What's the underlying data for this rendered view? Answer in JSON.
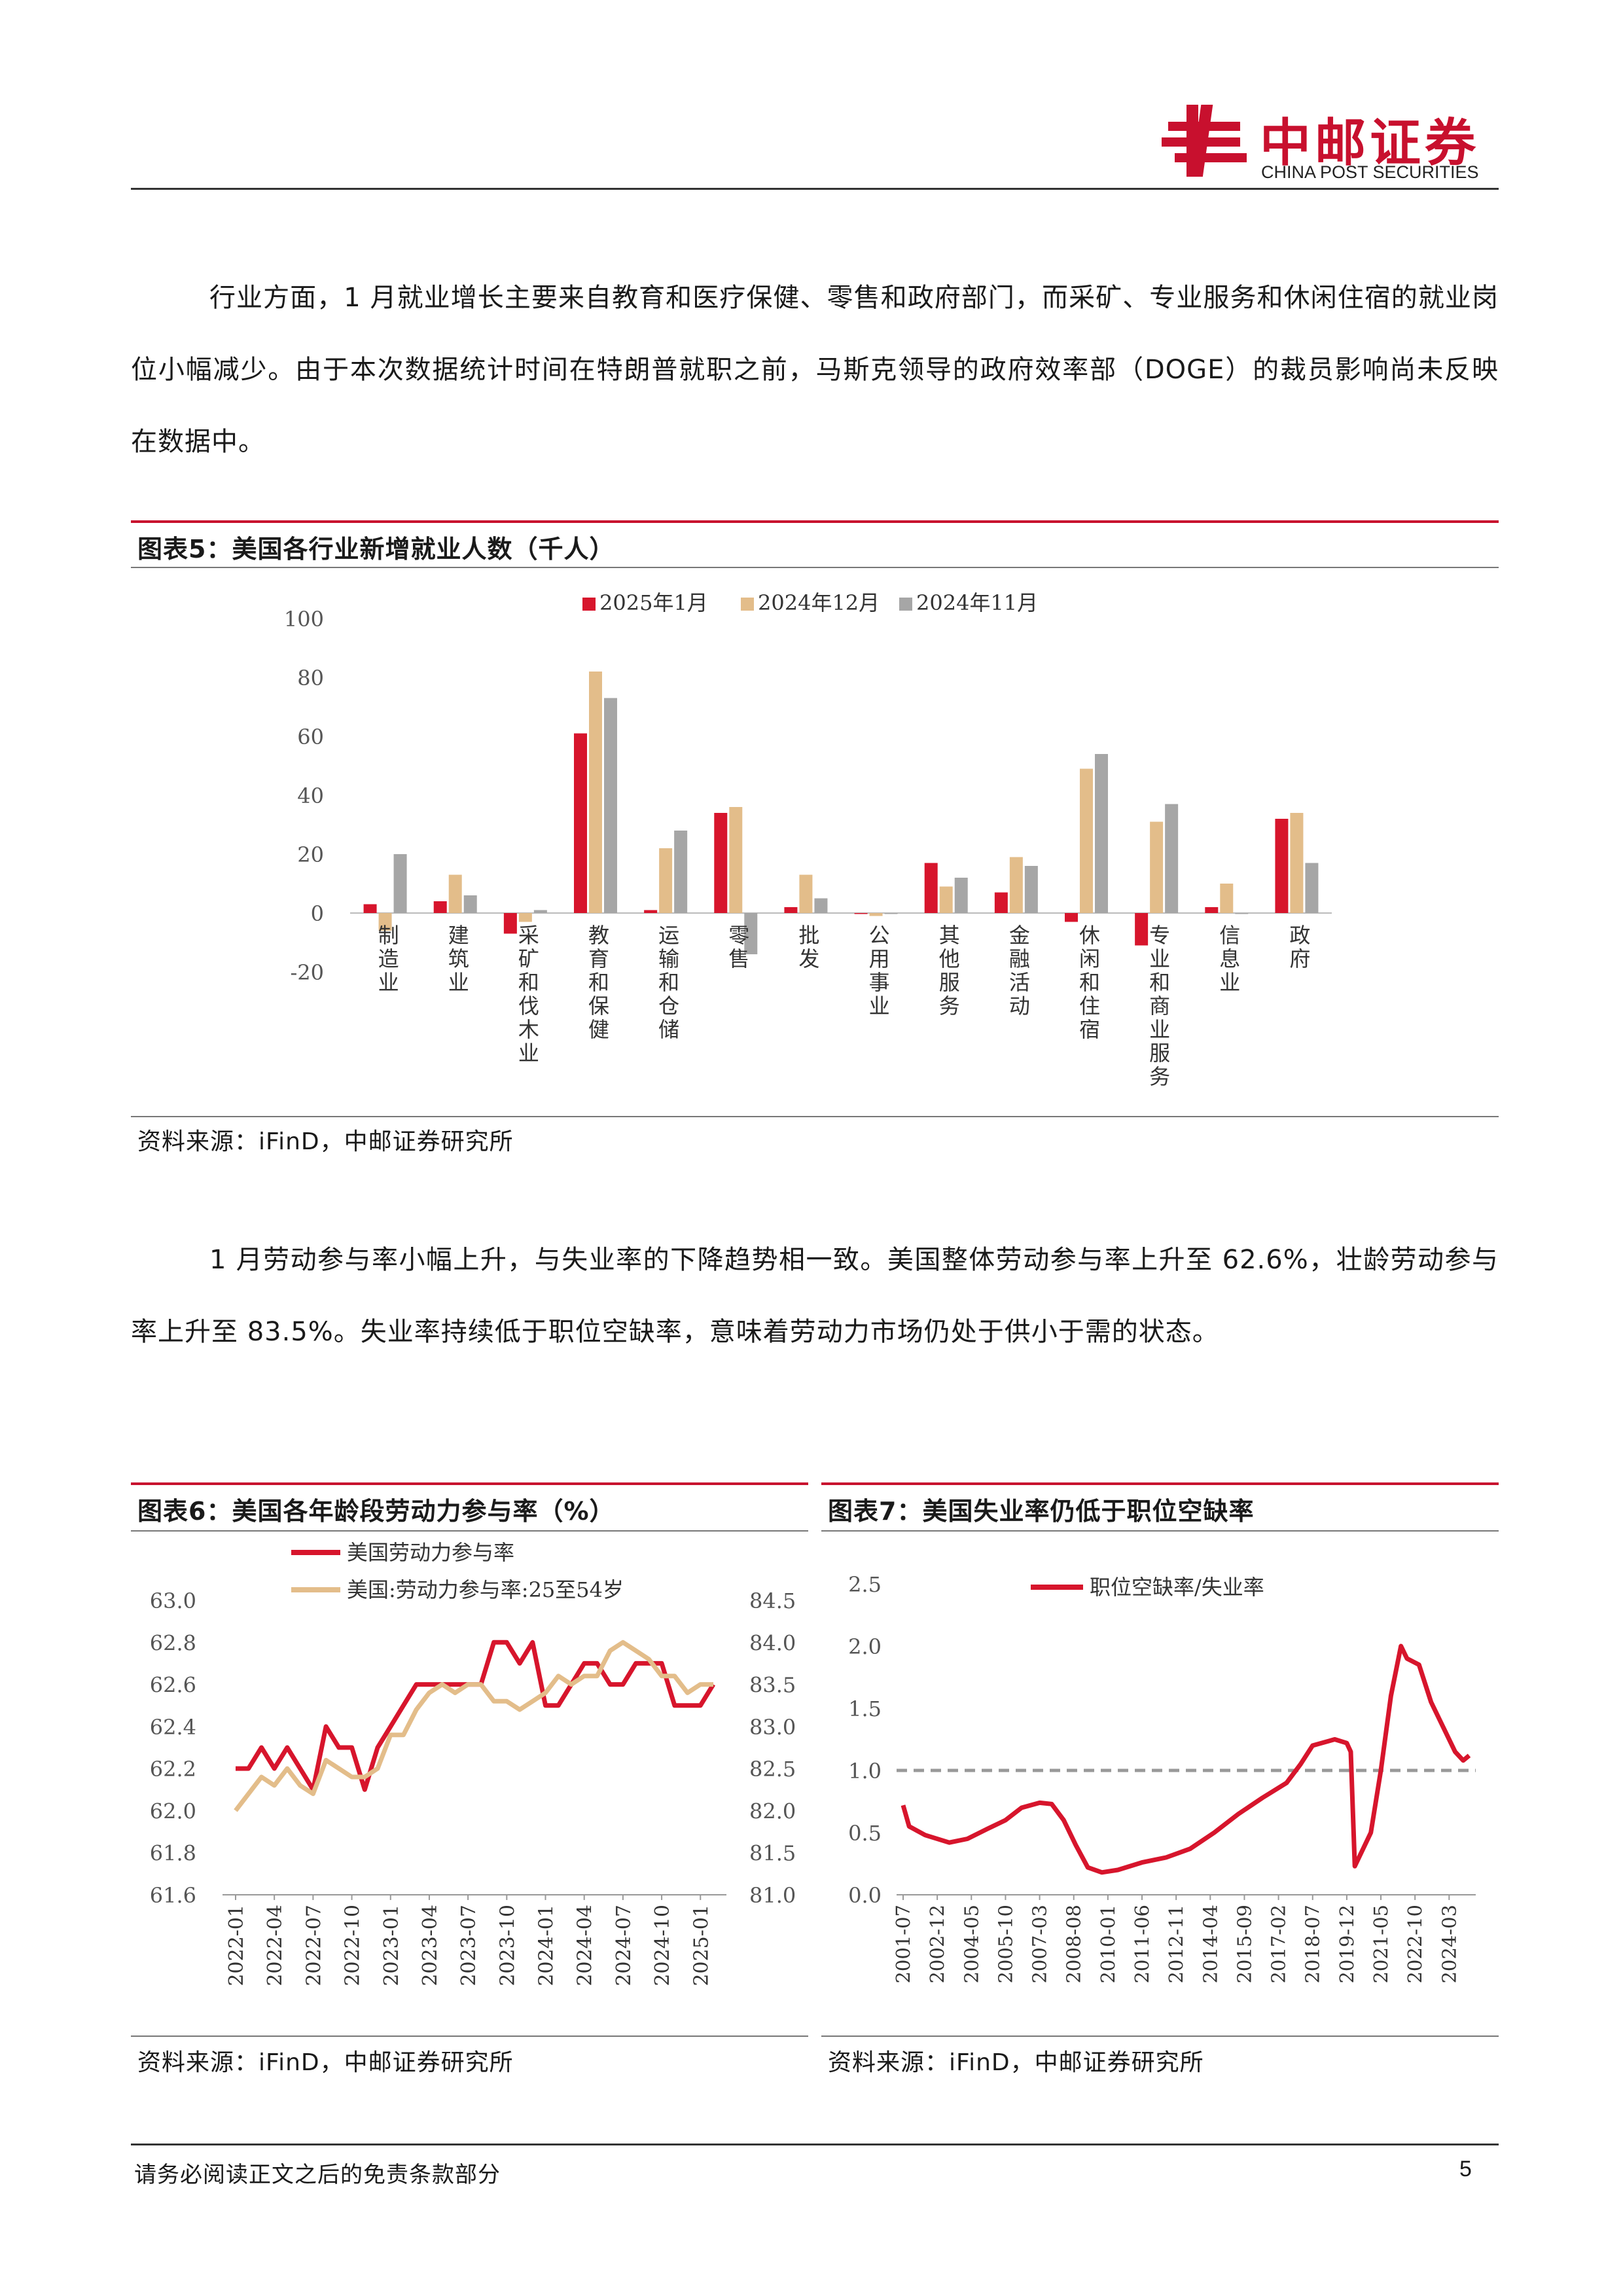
{
  "header": {
    "logo_cn": "中邮证券",
    "logo_en": "CHINA POST SECURITIES",
    "brand_color": "#c8102e"
  },
  "paragraphs": [
    "行业方面，1 月就业增长主要来自教育和医疗保健、零售和政府部门，而采矿、专业服务和休闲住宿的就业岗位小幅减少。由于本次数据统计时间在特朗普就职之前，马斯克领导的政府效率部（DOGE）的裁员影响尚未反映在数据中。",
    "1 月劳动参与率小幅上升，与失业率的下降趋势相一致。美国整体劳动参与率上升至 62.6%，壮龄劳动参与率上升至 83.5%。失业率持续低于职位空缺率，意味着劳动力市场仍处于供小于需的状态。"
  ],
  "figure5": {
    "caption": "图表5：美国各行业新增就业人数（千人）",
    "source": "资料来源：iFinD，中邮证券研究所"
  },
  "figure6": {
    "caption": "图表6：美国各年龄段劳动力参与率（%）",
    "source": "资料来源：iFinD，中邮证券研究所"
  },
  "figure7": {
    "caption": "图表7：美国失业率仍低于职位空缺率",
    "source": "资料来源：iFinD，中邮证券研究所"
  },
  "footer": {
    "disclaimer": "请务必阅读正文之后的免责条款部分",
    "page_number": "5"
  },
  "chart_data": [
    {
      "type": "bar",
      "categories": [
        "制造业",
        "建筑业",
        "采矿和伐木业",
        "教育和保健",
        "运输和仓储",
        "零售",
        "批发",
        "公用事业",
        "其他服务",
        "金融活动",
        "休闲和住宿",
        "专业和商业服务",
        "信息业",
        "政府"
      ],
      "series": [
        {
          "name": "2025年1月",
          "color": "#d7152c",
          "values": [
            3,
            4,
            -7,
            61,
            1,
            34,
            2,
            0,
            17,
            7,
            -3,
            -11,
            2,
            32
          ]
        },
        {
          "name": "2024年12月",
          "color": "#e3bd8a",
          "values": [
            -6,
            13,
            -3,
            82,
            22,
            36,
            13,
            -1,
            9,
            19,
            49,
            31,
            10,
            34
          ]
        },
        {
          "name": "2024年11月",
          "color": "#a6a6a6",
          "values": [
            20,
            6,
            1,
            73,
            28,
            -14,
            5,
            0,
            12,
            16,
            54,
            37,
            0,
            17
          ]
        }
      ],
      "yticks": [
        100,
        80,
        60,
        40,
        20,
        0,
        -20
      ],
      "ylim": [
        -20,
        100
      ],
      "legend_position": "top"
    },
    {
      "type": "line",
      "x_ticks": [
        "2022-01",
        "2022-04",
        "2022-07",
        "2022-10",
        "2023-01",
        "2023-04",
        "2023-07",
        "2023-10",
        "2024-01",
        "2024-04",
        "2024-07",
        "2024-10",
        "2025-01"
      ],
      "series": [
        {
          "name": "美国劳动力参与率",
          "axis": "left",
          "color": "#d7152c",
          "values": [
            62.2,
            62.2,
            62.3,
            62.2,
            62.3,
            62.2,
            62.1,
            62.4,
            62.3,
            62.3,
            62.1,
            62.3,
            62.4,
            62.5,
            62.6,
            62.6,
            62.6,
            62.6,
            62.6,
            62.6,
            62.8,
            62.8,
            62.7,
            62.8,
            62.5,
            62.5,
            62.6,
            62.7,
            62.7,
            62.6,
            62.6,
            62.7,
            62.7,
            62.7,
            62.5,
            62.5,
            62.5,
            62.6
          ]
        },
        {
          "name": "美国:劳动力参与率:25至54岁",
          "axis": "right",
          "color": "#e3bd8a",
          "values": [
            82.0,
            82.2,
            82.4,
            82.3,
            82.5,
            82.3,
            82.2,
            82.6,
            82.5,
            82.4,
            82.4,
            82.5,
            82.9,
            82.9,
            83.2,
            83.4,
            83.5,
            83.4,
            83.5,
            83.5,
            83.3,
            83.3,
            83.2,
            83.3,
            83.4,
            83.6,
            83.5,
            83.6,
            83.6,
            83.9,
            84.0,
            83.9,
            83.8,
            83.6,
            83.6,
            83.4,
            83.5,
            83.5
          ]
        }
      ],
      "yticks_left": [
        63.0,
        62.8,
        62.6,
        62.4,
        62.2,
        62.0,
        61.8,
        61.6
      ],
      "yticks_right": [
        84.5,
        84.0,
        83.5,
        83.0,
        82.5,
        82.0,
        81.5,
        81.0
      ],
      "ylim_left": [
        61.6,
        63.0
      ],
      "ylim_right": [
        81.0,
        84.5
      ],
      "legend_position": "top-left"
    },
    {
      "type": "line",
      "x_ticks": [
        "2001-07",
        "2002-12",
        "2004-05",
        "2005-10",
        "2007-03",
        "2008-08",
        "2010-01",
        "2011-06",
        "2012-11",
        "2014-04",
        "2015-09",
        "2017-02",
        "2018-07",
        "2019-12",
        "2021-05",
        "2022-10",
        "2024-03"
      ],
      "series": [
        {
          "name": "职位空缺率/失业率",
          "color": "#d7152c",
          "points": [
            [
              "2001-07",
              0.72
            ],
            [
              "2001-10",
              0.55
            ],
            [
              "2002-06",
              0.48
            ],
            [
              "2003-06",
              0.42
            ],
            [
              "2004-03",
              0.45
            ],
            [
              "2005-01",
              0.53
            ],
            [
              "2005-10",
              0.6
            ],
            [
              "2006-06",
              0.7
            ],
            [
              "2007-03",
              0.74
            ],
            [
              "2007-09",
              0.73
            ],
            [
              "2008-03",
              0.6
            ],
            [
              "2008-09",
              0.4
            ],
            [
              "2009-03",
              0.22
            ],
            [
              "2009-10",
              0.18
            ],
            [
              "2010-06",
              0.2
            ],
            [
              "2011-06",
              0.26
            ],
            [
              "2012-06",
              0.3
            ],
            [
              "2013-06",
              0.37
            ],
            [
              "2014-06",
              0.5
            ],
            [
              "2015-06",
              0.65
            ],
            [
              "2016-06",
              0.78
            ],
            [
              "2017-06",
              0.9
            ],
            [
              "2018-01",
              1.05
            ],
            [
              "2018-07",
              1.2
            ],
            [
              "2019-06",
              1.25
            ],
            [
              "2019-12",
              1.22
            ],
            [
              "2020-02",
              1.15
            ],
            [
              "2020-04",
              0.23
            ],
            [
              "2020-12",
              0.5
            ],
            [
              "2021-05",
              1.0
            ],
            [
              "2021-10",
              1.6
            ],
            [
              "2022-03",
              2.0
            ],
            [
              "2022-06",
              1.9
            ],
            [
              "2022-12",
              1.85
            ],
            [
              "2023-06",
              1.55
            ],
            [
              "2023-12",
              1.35
            ],
            [
              "2024-06",
              1.15
            ],
            [
              "2024-10",
              1.08
            ],
            [
              "2025-01",
              1.12
            ]
          ]
        },
        {
          "name": "reference",
          "color": "#999999",
          "dashed": true,
          "constant": 1.0
        }
      ],
      "yticks": [
        2.5,
        2.0,
        1.5,
        1.0,
        0.5,
        0.0
      ],
      "ylim": [
        0,
        2.5
      ],
      "legend_position": "top-left"
    }
  ]
}
